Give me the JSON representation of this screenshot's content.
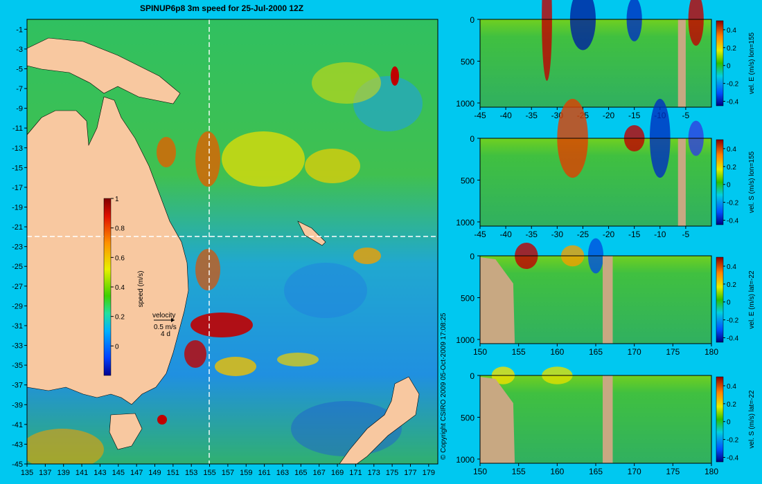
{
  "title": "SPINUP6p8 3m speed for 25-Jul-2000 12Z",
  "copyright": "© Copyright CSIRO 2009   05-Oct-2009 17:08:25",
  "colors": {
    "background": "#00c8f0",
    "land": "#f8c8a0",
    "section_land": "#c8a882",
    "section_line": "#ffffff"
  },
  "chart_data": [
    {
      "type": "heatmap",
      "name": "map",
      "xlim": [
        135,
        180
      ],
      "ylim": [
        -45,
        0
      ],
      "x_ticks": [
        "135",
        "137",
        "139",
        "141",
        "143",
        "145",
        "147",
        "149",
        "151",
        "153",
        "155",
        "157",
        "159",
        "161",
        "163",
        "165",
        "167",
        "169",
        "171",
        "173",
        "175",
        "177",
        "179"
      ],
      "y_ticks": [
        "-1",
        "-3",
        "-5",
        "-7",
        "-9",
        "-11",
        "-13",
        "-15",
        "-17",
        "-19",
        "-21",
        "-23",
        "-25",
        "-27",
        "-29",
        "-31",
        "-33",
        "-35",
        "-37",
        "-39",
        "-41",
        "-43",
        "-45"
      ],
      "section_lines": {
        "lon": 155,
        "lat": -22
      },
      "colorbar": {
        "label": "speed (m/s)",
        "ticks": [
          "1",
          "0.8",
          "0.6",
          "0.4",
          "0.2",
          "0"
        ]
      },
      "velocity_legend": {
        "title": "velocity",
        "speed": "0.5 m/s",
        "days": "4 d"
      }
    },
    {
      "type": "heatmap",
      "name": "section-lon155-east",
      "x_ticks": [
        "-45",
        "-40",
        "-35",
        "-30",
        "-25",
        "-20",
        "-15",
        "-10",
        "-5"
      ],
      "xlim": [
        -45,
        0
      ],
      "y_ticks": [
        "0",
        "500",
        "1000"
      ],
      "ylim": [
        0,
        1050
      ],
      "colorbar": {
        "label": "vel. E (m/s) lon=155",
        "ticks": [
          "0.4",
          "0.2",
          "0",
          "-0.2",
          "-0.4"
        ]
      }
    },
    {
      "type": "heatmap",
      "name": "section-lon155-south",
      "x_ticks": [
        "-45",
        "-40",
        "-35",
        "-30",
        "-25",
        "-20",
        "-15",
        "-10",
        "-5"
      ],
      "xlim": [
        -45,
        0
      ],
      "y_ticks": [
        "0",
        "500",
        "1000"
      ],
      "ylim": [
        0,
        1050
      ],
      "colorbar": {
        "label": "vel. S (m/s) lon=155",
        "ticks": [
          "0.4",
          "0.2",
          "0",
          "-0.2",
          "-0.4"
        ]
      }
    },
    {
      "type": "heatmap",
      "name": "section-lat22-east",
      "x_ticks": [
        "150",
        "155",
        "160",
        "165",
        "170",
        "175",
        "180"
      ],
      "xlim": [
        150,
        180
      ],
      "y_ticks": [
        "0",
        "500",
        "1000"
      ],
      "ylim": [
        0,
        1050
      ],
      "colorbar": {
        "label": "vel. E (m/s) lat=-22",
        "ticks": [
          "0.4",
          "0.2",
          "0",
          "-0.2",
          "-0.4"
        ]
      }
    },
    {
      "type": "heatmap",
      "name": "section-lat22-south",
      "x_ticks": [
        "150",
        "155",
        "160",
        "165",
        "170",
        "175",
        "180"
      ],
      "xlim": [
        150,
        180
      ],
      "y_ticks": [
        "0",
        "500",
        "1000"
      ],
      "ylim": [
        0,
        1050
      ],
      "colorbar": {
        "label": "vel. S (m/s) lat=-22",
        "ticks": [
          "0.4",
          "0.2",
          "0",
          "-0.2",
          "-0.4"
        ]
      }
    }
  ]
}
